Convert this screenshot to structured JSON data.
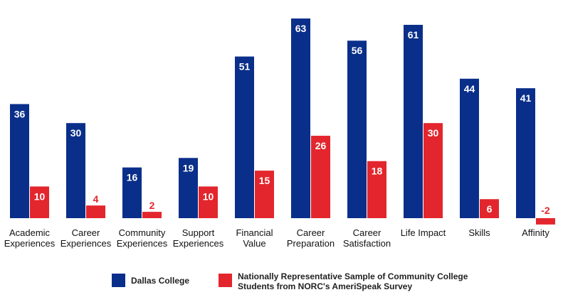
{
  "chart_data": {
    "type": "bar",
    "categories": [
      [
        "Academic",
        "Experiences"
      ],
      [
        "Career",
        "Experiences"
      ],
      [
        "Community",
        "Experiences"
      ],
      [
        "Support",
        "Experiences"
      ],
      [
        "Financial",
        "Value"
      ],
      [
        "Career",
        "Preparation"
      ],
      [
        "Career",
        "Satisfaction"
      ],
      [
        "Life Impact"
      ],
      [
        "Skills"
      ],
      [
        "Affinity"
      ]
    ],
    "series": [
      {
        "name": "Dallas College",
        "color": "#0a2f8a",
        "values": [
          36,
          30,
          16,
          19,
          51,
          63,
          56,
          61,
          44,
          41
        ]
      },
      {
        "name": [
          "Nationally Representative Sample of Community College",
          "Students from NORC's AmeriSpeak Survey"
        ],
        "color": "#e3262d",
        "values": [
          10,
          4,
          2,
          10,
          15,
          26,
          18,
          30,
          6,
          -2
        ]
      }
    ],
    "ylim": [
      -2,
      63
    ],
    "grid": false,
    "legend_position": "bottom"
  }
}
